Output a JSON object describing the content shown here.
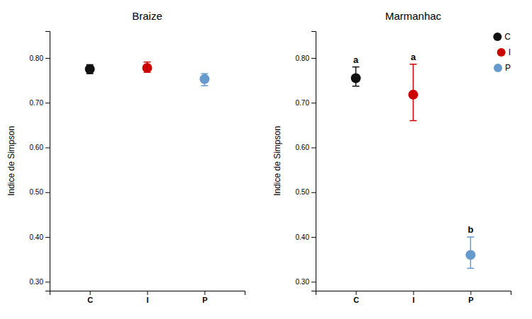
{
  "chart_data": [
    {
      "type": "errorbar",
      "title": "Braize",
      "y_label": "Indice de Simpson",
      "categories": [
        "C",
        "I",
        "P"
      ],
      "values": [
        0.775,
        0.778,
        0.753
      ],
      "errors_lower": [
        0.01,
        0.01,
        0.015
      ],
      "errors_upper": [
        0.01,
        0.013,
        0.012
      ],
      "colors": [
        "#111111",
        "#cc0000",
        "#6699cc"
      ],
      "ylim": [
        0.28,
        0.86
      ],
      "yticks": [
        {
          "value": 0.3,
          "label": "0.30"
        },
        {
          "value": 0.4,
          "label": "0.40"
        },
        {
          "value": 0.5,
          "label": "0.50"
        },
        {
          "value": 0.6,
          "label": "0.60"
        },
        {
          "value": 0.7,
          "label": "0.70"
        },
        {
          "value": 0.8,
          "label": "0.80"
        }
      ],
      "grid": false
    },
    {
      "type": "errorbar",
      "title": "Marmanhac",
      "y_label": "Indice de Simpson",
      "categories": [
        "C",
        "I",
        "P"
      ],
      "values": [
        0.755,
        0.718,
        0.36
      ],
      "errors_lower": [
        0.018,
        0.058,
        0.03
      ],
      "errors_upper": [
        0.025,
        0.068,
        0.04
      ],
      "colors": [
        "#111111",
        "#cc0000",
        "#6699cc"
      ],
      "annotations": [
        "a",
        "a",
        "b"
      ],
      "ylim": [
        0.28,
        0.86
      ],
      "yticks": [
        {
          "value": 0.3,
          "label": "0.30"
        },
        {
          "value": 0.4,
          "label": "0.40"
        },
        {
          "value": 0.5,
          "label": "0.50"
        },
        {
          "value": 0.6,
          "label": "0.60"
        },
        {
          "value": 0.7,
          "label": "0.70"
        },
        {
          "value": 0.8,
          "label": "0.80"
        }
      ],
      "grid": false,
      "legend": "upper-right"
    }
  ]
}
